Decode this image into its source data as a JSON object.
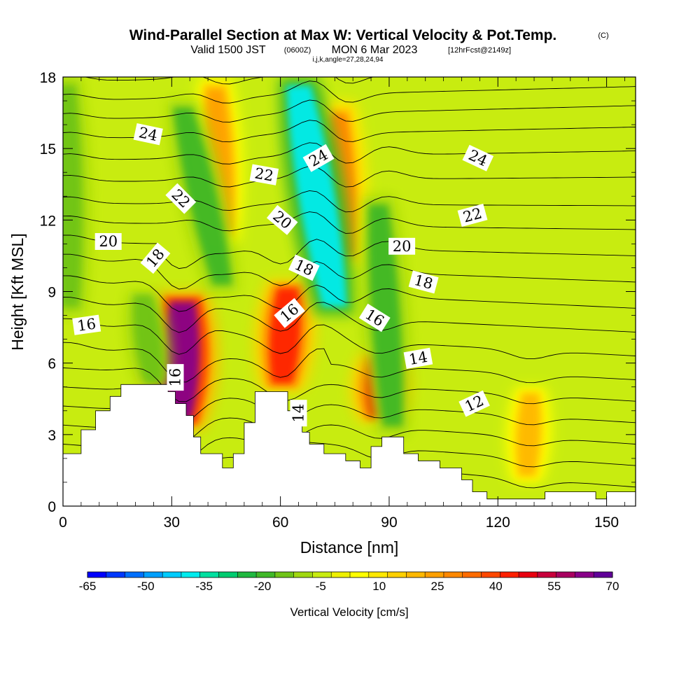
{
  "title": {
    "main": "Wind-Parallel Section at Max W: Vertical Velocity & Pot.Temp.",
    "copyright": "(C)",
    "valid_prefix": "Valid 1500 JST",
    "zulu": "(0600Z)",
    "valid_date": "MON 6 Mar 2023",
    "forecast": "[12hrFcst@2149z]",
    "indices": "i,j,k,angle=27,28,24,94"
  },
  "chart_data": {
    "type": "heatmap",
    "xlabel": "Distance [nm]",
    "ylabel": "Height [Kft MSL]",
    "xlim": [
      0,
      158
    ],
    "ylim": [
      0,
      18
    ],
    "x_ticks": [
      0,
      30,
      60,
      90,
      120,
      150
    ],
    "y_ticks": [
      0,
      3,
      6,
      9,
      12,
      15,
      18
    ],
    "grid": false,
    "colorbar": {
      "label": "Vertical Velocity [cm/s]",
      "tick_labels": [
        "-65",
        "-50",
        "-35",
        "-20",
        "-5",
        "10",
        "25",
        "40",
        "55",
        "70"
      ],
      "min": -65,
      "max": 70,
      "step": 5,
      "colors": [
        "#0000ff",
        "#0038ff",
        "#0070ff",
        "#00a0ff",
        "#00ccff",
        "#00ecee",
        "#00e0a0",
        "#00cc70",
        "#20b840",
        "#40b828",
        "#70c418",
        "#a0d810",
        "#c8ec10",
        "#eef000",
        "#ffff00",
        "#ffe800",
        "#ffd000",
        "#ffb800",
        "#ffa000",
        "#ff8800",
        "#ff6c00",
        "#ff4800",
        "#ff2000",
        "#e80010",
        "#c8003c",
        "#a80060",
        "#880088",
        "#600098"
      ]
    },
    "terrain_kft": [
      [
        0,
        2.2
      ],
      [
        5,
        2.2
      ],
      [
        5,
        3.2
      ],
      [
        9,
        3.2
      ],
      [
        9,
        4.0
      ],
      [
        13,
        4.0
      ],
      [
        13,
        4.6
      ],
      [
        16,
        4.6
      ],
      [
        16,
        5.1
      ],
      [
        29,
        5.1
      ],
      [
        29,
        4.8
      ],
      [
        31,
        4.8
      ],
      [
        31,
        4.3
      ],
      [
        34,
        4.3
      ],
      [
        34,
        3.8
      ],
      [
        36,
        3.8
      ],
      [
        36,
        2.9
      ],
      [
        38,
        2.9
      ],
      [
        38,
        2.2
      ],
      [
        44,
        2.2
      ],
      [
        44,
        1.6
      ],
      [
        47,
        1.6
      ],
      [
        47,
        2.2
      ],
      [
        50,
        2.2
      ],
      [
        50,
        3.5
      ],
      [
        53,
        3.5
      ],
      [
        53,
        4.8
      ],
      [
        62,
        4.8
      ],
      [
        62,
        4.0
      ],
      [
        64,
        4.0
      ],
      [
        64,
        3.5
      ],
      [
        66,
        3.5
      ],
      [
        66,
        3.1
      ],
      [
        68,
        3.1
      ],
      [
        68,
        2.6
      ],
      [
        72,
        2.6
      ],
      [
        72,
        2.2
      ],
      [
        78,
        2.2
      ],
      [
        78,
        1.9
      ],
      [
        82,
        1.9
      ],
      [
        82,
        1.6
      ],
      [
        85,
        1.6
      ],
      [
        85,
        2.5
      ],
      [
        88,
        2.5
      ],
      [
        88,
        2.9
      ],
      [
        94,
        2.9
      ],
      [
        94,
        2.2
      ],
      [
        98,
        2.2
      ],
      [
        98,
        1.9
      ],
      [
        104,
        1.9
      ],
      [
        104,
        1.6
      ],
      [
        110,
        1.6
      ],
      [
        110,
        1.1
      ],
      [
        113,
        1.1
      ],
      [
        113,
        0.6
      ],
      [
        117,
        0.6
      ],
      [
        117,
        0.3
      ],
      [
        133,
        0.3
      ],
      [
        133,
        0.6
      ],
      [
        147,
        0.6
      ],
      [
        147,
        0.3
      ],
      [
        150,
        0.3
      ],
      [
        150,
        0.6
      ],
      [
        158,
        0.6
      ]
    ],
    "bands": [
      {
        "name": "up-1",
        "w_cm_s": 65,
        "base_x": 32,
        "base_y": 3.2,
        "top_x": 33,
        "top_y": 9.0
      },
      {
        "name": "up-2",
        "w_cm_s": 45,
        "base_x": 60.5,
        "base_y": 4.8,
        "top_x": 62,
        "top_y": 9.5
      },
      {
        "name": "up-3",
        "w_cm_s": 45,
        "base_x": 87.5,
        "base_y": 3.5,
        "top_x": 88,
        "top_y": 6.5
      },
      {
        "name": "up-4",
        "w_cm_s": 30,
        "base_x": 78,
        "base_y": 10,
        "top_x": 76,
        "top_y": 17
      },
      {
        "name": "up-5",
        "w_cm_s": 25,
        "base_x": 44,
        "base_y": 11,
        "top_x": 42,
        "top_y": 18
      },
      {
        "name": "up-6",
        "w_cm_s": 20,
        "base_x": 128,
        "base_y": 1,
        "top_x": 129,
        "top_y": 5
      },
      {
        "name": "down-1",
        "w_cm_s": -40,
        "base_x": 75,
        "base_y": 8,
        "top_x": 65,
        "top_y": 18
      },
      {
        "name": "down-2",
        "w_cm_s": -20,
        "base_x": 44,
        "base_y": 9,
        "top_x": 33,
        "top_y": 17
      },
      {
        "name": "down-3",
        "w_cm_s": -20,
        "base_x": 91,
        "base_y": 3,
        "top_x": 87,
        "top_y": 13
      },
      {
        "name": "down-4",
        "w_cm_s": -15,
        "base_x": 25,
        "base_y": 5,
        "top_x": 22,
        "top_y": 9
      },
      {
        "name": "down-5",
        "w_cm_s": -15,
        "base_x": 2,
        "base_y": 8,
        "top_x": 1,
        "top_y": 18
      }
    ],
    "isentropes": [
      {
        "theta": 10,
        "y_left": 2.6,
        "y_right": 0.8
      },
      {
        "theta": 11,
        "y_left": 3.4,
        "y_right": 1.7
      },
      {
        "theta": 12,
        "y_left": 4.2,
        "y_right": 2.6
      },
      {
        "theta": 13,
        "y_left": 5.0,
        "y_right": 3.5
      },
      {
        "theta": 14,
        "y_left": 5.8,
        "y_right": 4.4
      },
      {
        "theta": 15,
        "y_left": 6.6,
        "y_right": 5.3
      },
      {
        "theta": 16,
        "y_left": 7.6,
        "y_right": 6.3
      },
      {
        "theta": 17,
        "y_left": 8.5,
        "y_right": 7.3
      },
      {
        "theta": 18,
        "y_left": 9.4,
        "y_right": 8.3
      },
      {
        "theta": 19,
        "y_left": 10.3,
        "y_right": 9.4
      },
      {
        "theta": 20,
        "y_left": 11.1,
        "y_right": 10.5
      },
      {
        "theta": 21,
        "y_left": 11.9,
        "y_right": 11.6
      },
      {
        "theta": 22,
        "y_left": 12.7,
        "y_right": 12.6
      },
      {
        "theta": 23,
        "y_left": 13.6,
        "y_right": 13.8
      },
      {
        "theta": 24,
        "y_left": 14.5,
        "y_right": 14.9
      },
      {
        "theta": 25,
        "y_left": 15.4,
        "y_right": 15.9
      },
      {
        "theta": 26,
        "y_left": 16.2,
        "y_right": 16.8
      },
      {
        "theta": 27,
        "y_left": 17.0,
        "y_right": 17.6
      },
      {
        "theta": 28,
        "y_left": 17.8,
        "y_right": 18.4
      }
    ],
    "contour_labels": [
      {
        "text": "24",
        "x": 23.5,
        "y": 15.6,
        "angle": 12
      },
      {
        "text": "22",
        "x": 32.5,
        "y": 12.9,
        "angle": 45
      },
      {
        "text": "20",
        "x": 12.5,
        "y": 11.1,
        "angle": 0
      },
      {
        "text": "18",
        "x": 25.5,
        "y": 10.4,
        "angle": -50
      },
      {
        "text": "16",
        "x": 6.5,
        "y": 7.6,
        "angle": -8
      },
      {
        "text": "16",
        "x": 31,
        "y": 5.4,
        "angle": -90
      },
      {
        "text": "22",
        "x": 55.5,
        "y": 13.9,
        "angle": 10
      },
      {
        "text": "24",
        "x": 70.5,
        "y": 14.6,
        "angle": -30
      },
      {
        "text": "20",
        "x": 60.5,
        "y": 12.0,
        "angle": 40
      },
      {
        "text": "18",
        "x": 66.5,
        "y": 10.0,
        "angle": 25
      },
      {
        "text": "16",
        "x": 62.5,
        "y": 8.1,
        "angle": -40
      },
      {
        "text": "14",
        "x": 65,
        "y": 3.9,
        "angle": -90
      },
      {
        "text": "16",
        "x": 86,
        "y": 7.9,
        "angle": 32
      },
      {
        "text": "24",
        "x": 114.5,
        "y": 14.6,
        "angle": 25
      },
      {
        "text": "22",
        "x": 113,
        "y": 12.2,
        "angle": -15
      },
      {
        "text": "20",
        "x": 93.5,
        "y": 10.9,
        "angle": 0
      },
      {
        "text": "18",
        "x": 99.5,
        "y": 9.4,
        "angle": 15
      },
      {
        "text": "14",
        "x": 98,
        "y": 6.2,
        "angle": -10
      },
      {
        "text": "12",
        "x": 113.5,
        "y": 4.3,
        "angle": -25
      }
    ]
  }
}
